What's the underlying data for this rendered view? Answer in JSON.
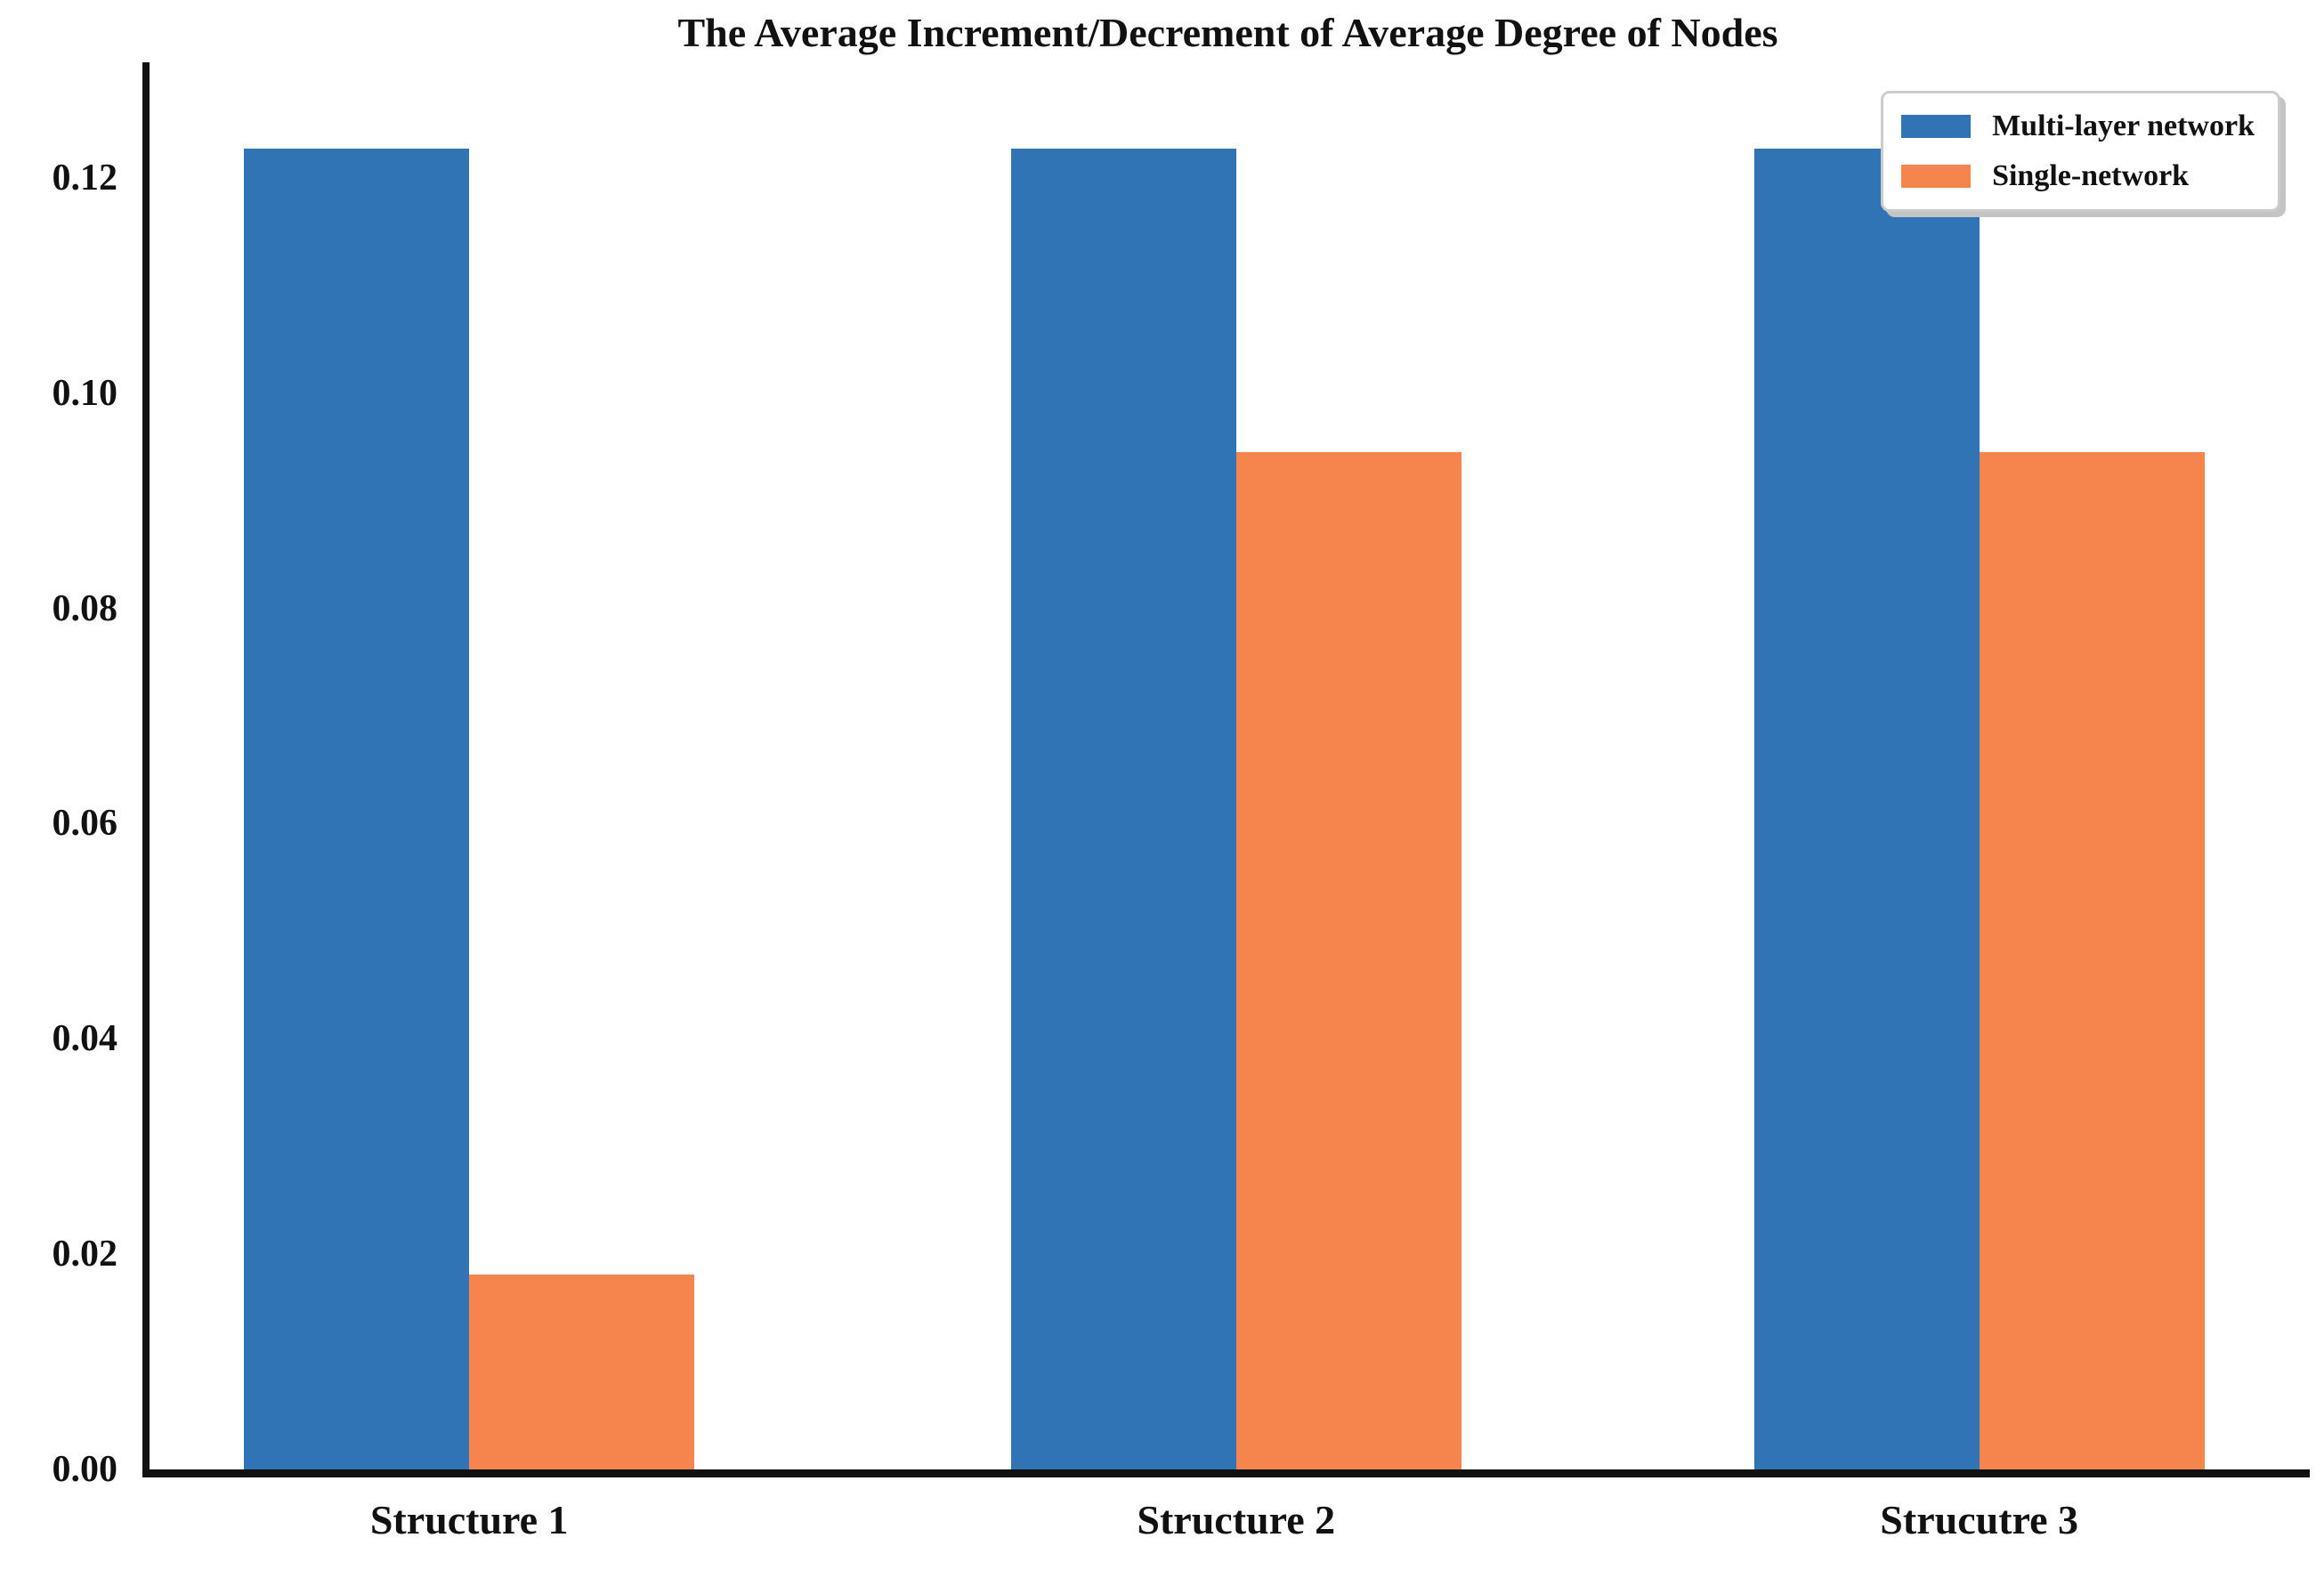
{
  "title": "The Average Increment/Decrement of Average Degree of Nodes",
  "chart_data": {
    "type": "bar",
    "title": "The Average Increment/Decrement of Average Degree of Nodes",
    "categories": [
      "Structure 1",
      "Structure 2",
      "Strucutre 3"
    ],
    "series": [
      {
        "name": "Multi-layer network",
        "color": "#3174b5",
        "values": [
          0.122,
          0.122,
          0.122
        ]
      },
      {
        "name": "Single-network",
        "color": "#f6854d",
        "values": [
          0.018,
          0.094,
          0.094
        ]
      }
    ],
    "xlabel": "",
    "ylabel": "",
    "ylim": [
      0,
      0.13
    ],
    "yticks": [
      0.0,
      0.02,
      0.04,
      0.06,
      0.08,
      0.1,
      0.12
    ],
    "ytick_labels": [
      "0.00",
      "0.02",
      "0.04",
      "0.06",
      "0.08",
      "0.10",
      "0.12"
    ],
    "grid": false,
    "legend_position": "upper right"
  }
}
